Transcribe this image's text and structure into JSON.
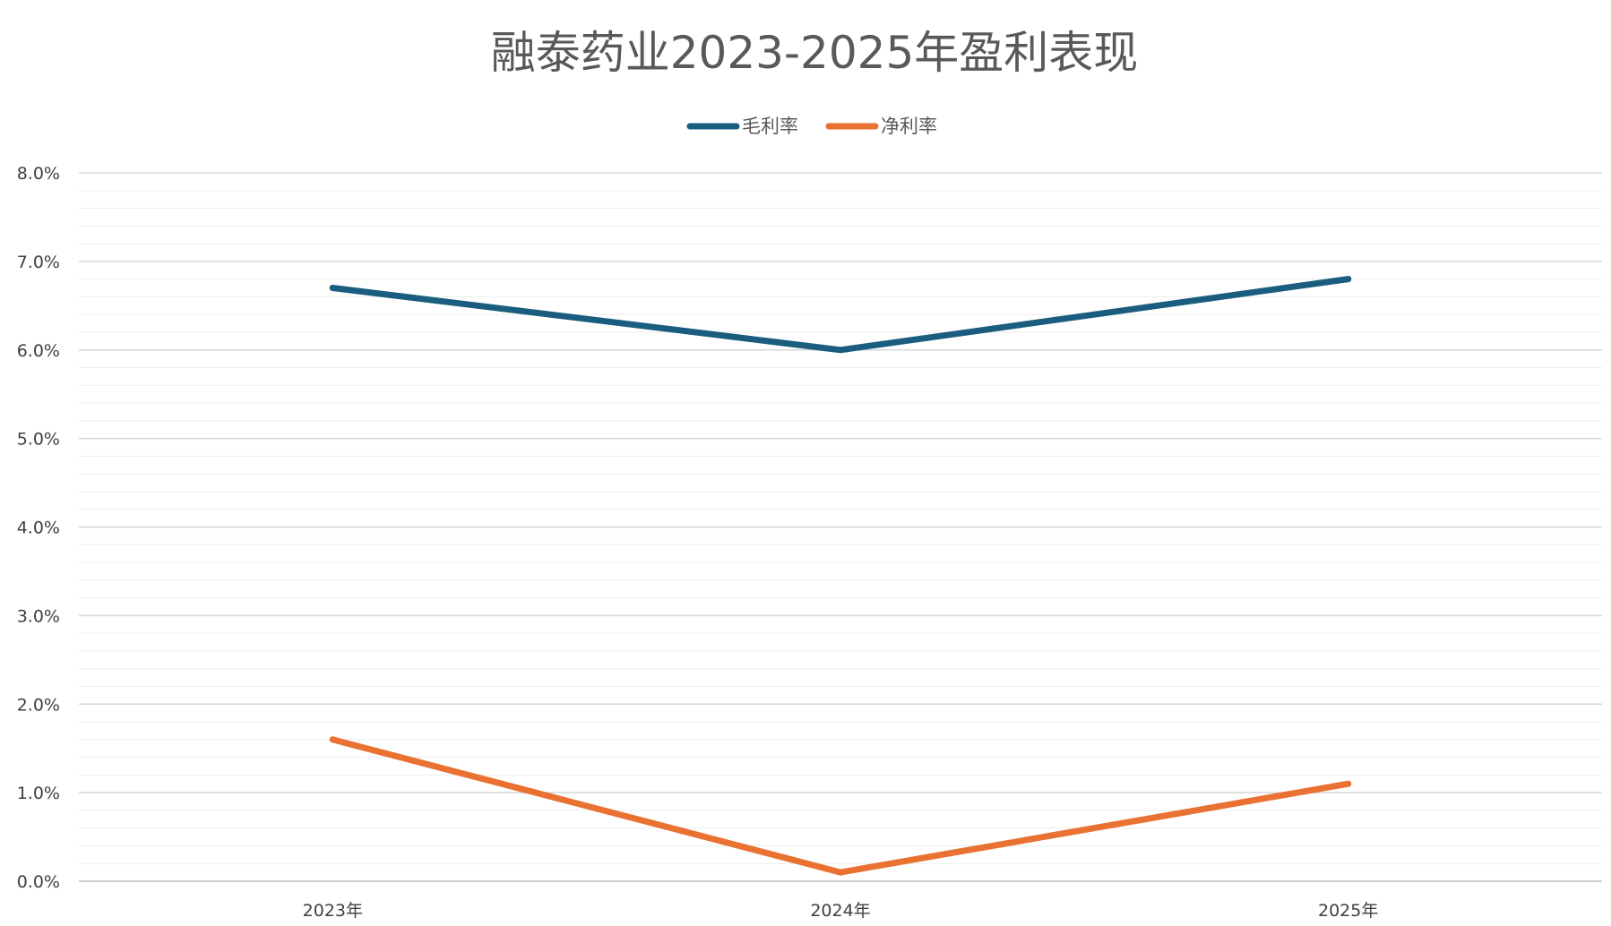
{
  "chart_data": {
    "type": "line",
    "title": "融泰药业2023-2025年盈利表现",
    "categories": [
      "2023年",
      "2024年",
      "2025年"
    ],
    "series": [
      {
        "name": "毛利率",
        "values": [
          6.7,
          6.0,
          6.8
        ],
        "color": "#1b5d7f"
      },
      {
        "name": "净利率",
        "values": [
          1.6,
          0.1,
          1.1
        ],
        "color": "#e97132"
      }
    ],
    "y_ticks": [
      "0.0%",
      "1.0%",
      "2.0%",
      "3.0%",
      "4.0%",
      "5.0%",
      "6.0%",
      "7.0%",
      "8.0%"
    ],
    "ylim": [
      0,
      8
    ],
    "y_major_step": 1,
    "y_minor_step": 0.2,
    "grid": true,
    "legend_position": "top",
    "xlabel": "",
    "ylabel": ""
  }
}
